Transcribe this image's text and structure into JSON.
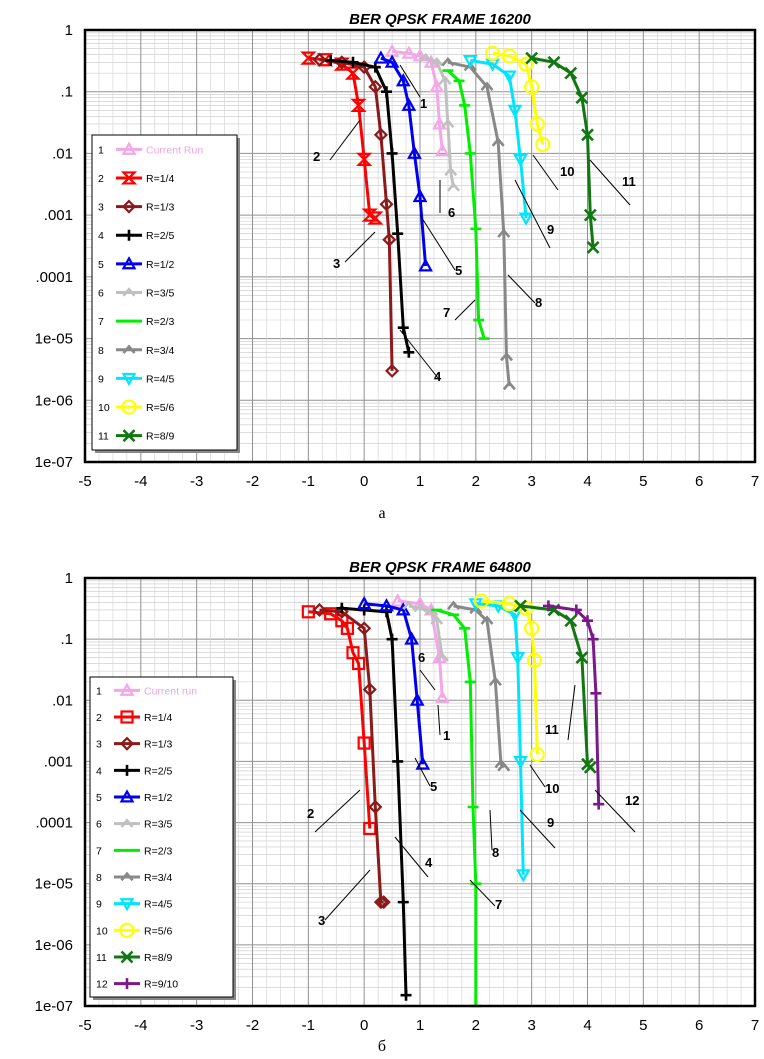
{
  "figures": [
    {
      "caption": "а",
      "chart_data": {
        "type": "line",
        "title": "BER QPSK FRAME 16200",
        "xlabel": "",
        "ylabel": "",
        "xlim": [
          -5,
          7
        ],
        "ylim": [
          1e-07,
          1
        ],
        "y_scale": "log",
        "x_ticks": [
          "-5",
          "-4",
          "-3",
          "-2",
          "-1",
          "0",
          "1",
          "2",
          "3",
          "4",
          "5",
          "6",
          "7"
        ],
        "y_ticks": [
          "1",
          ".1",
          ".01",
          ".001",
          ".0001",
          "1e-05",
          "1e-06",
          "1e-07"
        ],
        "grid": true,
        "legend_position": "left",
        "series": [
          {
            "num": "1",
            "name": "Current Run",
            "color": "#f4a6e8",
            "marker": "tri-up",
            "x": [
              0.5,
              0.8,
              1.0,
              1.2,
              1.3,
              1.35,
              1.4
            ],
            "y": [
              0.45,
              0.42,
              0.38,
              0.3,
              0.12,
              0.03,
              0.011
            ]
          },
          {
            "num": "2",
            "name": "R=1/4",
            "color": "#ff0000",
            "marker": "hourglass",
            "x": [
              -1.0,
              -0.7,
              -0.4,
              -0.2,
              -0.1,
              0.0,
              0.1,
              0.2
            ],
            "y": [
              0.35,
              0.33,
              0.28,
              0.2,
              0.06,
              0.008,
              0.001,
              0.0009
            ]
          },
          {
            "num": "3",
            "name": "R=1/3",
            "color": "#8b1a1a",
            "marker": "diamond",
            "x": [
              -0.8,
              -0.4,
              0.0,
              0.2,
              0.3,
              0.4,
              0.45,
              0.5
            ],
            "y": [
              0.33,
              0.3,
              0.25,
              0.12,
              0.02,
              0.0015,
              0.0004,
              3e-06
            ]
          },
          {
            "num": "4",
            "name": "R=2/5",
            "color": "#000000",
            "marker": "plus",
            "x": [
              -0.6,
              -0.2,
              0.2,
              0.4,
              0.5,
              0.6,
              0.7,
              0.8
            ],
            "y": [
              0.32,
              0.3,
              0.25,
              0.1,
              0.01,
              0.0005,
              1.5e-05,
              6e-06
            ]
          },
          {
            "num": "5",
            "name": "R=1/2",
            "color": "#0000ee",
            "marker": "tri-up",
            "x": [
              0.3,
              0.5,
              0.7,
              0.8,
              0.9,
              1.0,
              1.1
            ],
            "y": [
              0.35,
              0.3,
              0.15,
              0.06,
              0.01,
              0.002,
              0.00015
            ]
          },
          {
            "num": "6",
            "name": "R=3/5",
            "color": "#c0c0c0",
            "marker": "caret",
            "x": [
              1.1,
              1.3,
              1.45,
              1.5,
              1.55,
              1.6
            ],
            "y": [
              0.35,
              0.3,
              0.15,
              0.03,
              0.005,
              0.0028
            ]
          },
          {
            "num": "7",
            "name": "R=2/3",
            "color": "#00ee00",
            "marker": "dash",
            "x": [
              1.5,
              1.7,
              1.8,
              1.9,
              2.0,
              2.05,
              2.15
            ],
            "y": [
              0.22,
              0.15,
              0.06,
              0.01,
              0.0006,
              2e-05,
              1e-05
            ]
          },
          {
            "num": "8",
            "name": "R=3/4",
            "color": "#888888",
            "marker": "caret",
            "x": [
              1.5,
              1.9,
              2.2,
              2.4,
              2.5,
              2.55,
              2.6
            ],
            "y": [
              0.3,
              0.25,
              0.12,
              0.015,
              0.0005,
              5e-06,
              1.7e-06
            ]
          },
          {
            "num": "9",
            "name": "R=4/5",
            "color": "#00e5ff",
            "marker": "tri-down",
            "x": [
              1.9,
              2.3,
              2.6,
              2.7,
              2.8,
              2.9
            ],
            "y": [
              0.32,
              0.28,
              0.18,
              0.05,
              0.008,
              0.0009
            ]
          },
          {
            "num": "10",
            "name": "R=5/6",
            "color": "#ffff00",
            "marker": "circle",
            "x": [
              2.3,
              2.6,
              2.9,
              3.0,
              3.1,
              3.2
            ],
            "y": [
              0.42,
              0.38,
              0.28,
              0.12,
              0.03,
              0.014
            ]
          },
          {
            "num": "11",
            "name": "R=8/9",
            "color": "#117711",
            "marker": "cross",
            "x": [
              3.0,
              3.4,
              3.7,
              3.9,
              4.0,
              4.05,
              4.1
            ],
            "y": [
              0.35,
              0.3,
              0.2,
              0.08,
              0.02,
              0.001,
              0.0003
            ]
          }
        ],
        "annotations": [
          "1",
          "2",
          "3",
          "4",
          "5",
          "6",
          "7",
          "8",
          "9",
          "10",
          "11"
        ]
      }
    },
    {
      "caption": "б",
      "chart_data": {
        "type": "line",
        "title": "BER QPSK FRAME 64800",
        "xlabel": "",
        "ylabel": "",
        "xlim": [
          -5,
          7
        ],
        "ylim": [
          1e-07,
          1
        ],
        "y_scale": "log",
        "x_ticks": [
          "-5",
          "-4",
          "-3",
          "-2",
          "-1",
          "0",
          "1",
          "2",
          "3",
          "4",
          "5",
          "6",
          "7"
        ],
        "y_ticks": [
          "1",
          ".1",
          ".01",
          ".001",
          ".0001",
          "1e-05",
          "1e-06",
          "1e-07"
        ],
        "grid": true,
        "legend_position": "left",
        "series": [
          {
            "num": "1",
            "name": "Current run",
            "color": "#f4a6e8",
            "marker": "tri-up",
            "x": [
              0.6,
              1.0,
              1.2,
              1.35,
              1.4
            ],
            "y": [
              0.42,
              0.38,
              0.3,
              0.05,
              0.011
            ]
          },
          {
            "num": "2",
            "name": "R=1/4",
            "color": "#ff0000",
            "marker": "square",
            "x": [
              -1.0,
              -0.6,
              -0.4,
              -0.3,
              -0.2,
              -0.1,
              0.0,
              0.1
            ],
            "y": [
              0.28,
              0.26,
              0.2,
              0.15,
              0.06,
              0.04,
              0.002,
              8e-05
            ]
          },
          {
            "num": "3",
            "name": "R=1/3",
            "color": "#8b1a1a",
            "marker": "diamond",
            "x": [
              -0.8,
              -0.4,
              0.0,
              0.1,
              0.2,
              0.3,
              0.35
            ],
            "y": [
              0.3,
              0.28,
              0.15,
              0.015,
              0.00018,
              5e-06,
              5e-06
            ]
          },
          {
            "num": "4",
            "name": "R=2/5",
            "color": "#000000",
            "marker": "plus",
            "x": [
              -0.4,
              0.0,
              0.4,
              0.5,
              0.6,
              0.7,
              0.75
            ],
            "y": [
              0.32,
              0.3,
              0.28,
              0.1,
              0.001,
              5e-06,
              1.5e-07
            ]
          },
          {
            "num": "5",
            "name": "R=1/2",
            "color": "#0000ee",
            "marker": "tri-up",
            "x": [
              0.0,
              0.4,
              0.7,
              0.85,
              0.95,
              1.05
            ],
            "y": [
              0.38,
              0.35,
              0.3,
              0.1,
              0.01,
              0.0009
            ]
          },
          {
            "num": "6",
            "name": "R=3/5",
            "color": "#c0c0c0",
            "marker": "caret",
            "x": [
              0.8,
              1.0,
              1.2,
              1.3,
              1.4
            ],
            "y": [
              0.35,
              0.32,
              0.28,
              0.2,
              0.05
            ]
          },
          {
            "num": "7",
            "name": "R=2/3",
            "color": "#00ee00",
            "marker": "dash",
            "x": [
              1.3,
              1.6,
              1.8,
              1.9,
              1.95,
              2.0,
              2.0
            ],
            "y": [
              0.3,
              0.25,
              0.15,
              0.02,
              0.00018,
              1e-05,
              1e-07
            ]
          },
          {
            "num": "8",
            "name": "R=3/4",
            "color": "#888888",
            "marker": "caret",
            "x": [
              1.6,
              2.0,
              2.2,
              2.35,
              2.45,
              2.5
            ],
            "y": [
              0.35,
              0.3,
              0.2,
              0.02,
              0.0009,
              0.0008
            ]
          },
          {
            "num": "9",
            "name": "R=4/5",
            "color": "#00e5ff",
            "marker": "tri-down",
            "x": [
              2.0,
              2.4,
              2.7,
              2.75,
              2.8,
              2.85
            ],
            "y": [
              0.38,
              0.35,
              0.25,
              0.05,
              0.001,
              1.4e-05
            ]
          },
          {
            "num": "10",
            "name": "R=5/6",
            "color": "#ffff00",
            "marker": "circle",
            "x": [
              2.1,
              2.6,
              2.9,
              3.0,
              3.05,
              3.1
            ],
            "y": [
              0.42,
              0.38,
              0.32,
              0.15,
              0.045,
              0.0013
            ]
          },
          {
            "num": "11",
            "name": "R=8/9",
            "color": "#117711",
            "marker": "cross",
            "x": [
              2.8,
              3.4,
              3.7,
              3.9,
              4.0,
              4.05
            ],
            "y": [
              0.35,
              0.3,
              0.2,
              0.05,
              0.0009,
              0.0008
            ]
          },
          {
            "num": "12",
            "name": "R=9/10",
            "color": "#7a1a8a",
            "marker": "plus",
            "x": [
              3.3,
              3.8,
              4.0,
              4.1,
              4.15,
              4.2
            ],
            "y": [
              0.35,
              0.3,
              0.2,
              0.1,
              0.013,
              0.0002
            ]
          }
        ],
        "annotations": [
          "1",
          "2",
          "3",
          "4",
          "5",
          "6",
          "7",
          "8",
          "9",
          "10",
          "11",
          "12"
        ]
      }
    }
  ]
}
